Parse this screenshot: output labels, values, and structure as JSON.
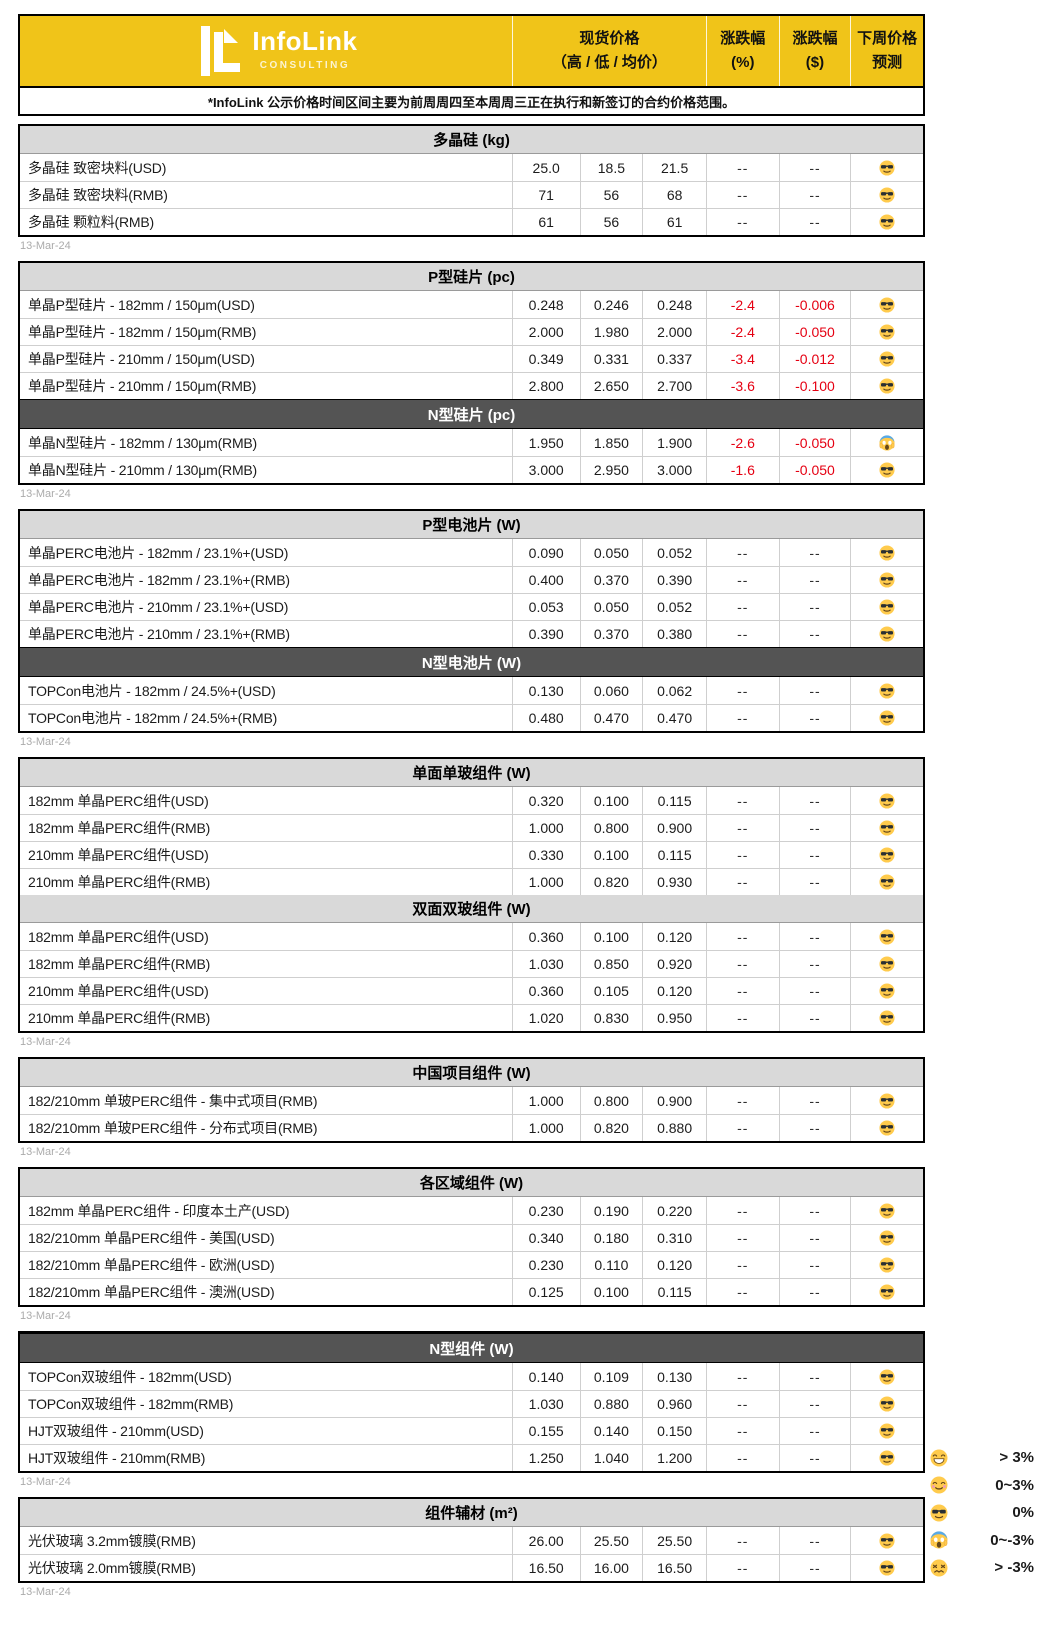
{
  "brand": {
    "name": "InfoLink",
    "subtitle": "CONSULTING"
  },
  "header": {
    "spot_price": [
      "现货价格",
      "（高 / 低 / 均价）"
    ],
    "change_pct": [
      "涨跌幅",
      "(%)"
    ],
    "change_usd": [
      "涨跌幅",
      "($)"
    ],
    "forecast": [
      "下周价格",
      "预测"
    ],
    "note": "*InfoLink 公示价格时间区间主要为前周周四至本周周三正在执行和新签订的合约价格范围。"
  },
  "colors": {
    "brand_yellow": "#F0C419",
    "section_light_bg": "#D9D9D9",
    "section_dark_bg": "#545454",
    "negative_red": "#E50012",
    "date_gray": "#ABABAB"
  },
  "blocks": [
    {
      "date": "13-Mar-24",
      "sections": [
        {
          "title": "多晶硅 (kg)",
          "theme": "light",
          "rows": [
            {
              "name": "多晶硅 致密块料(USD)",
              "high": "25.0",
              "low": "18.5",
              "avg": "21.5",
              "pct": "--",
              "usd": "--",
              "forecast": "cool"
            },
            {
              "name": "多晶硅 致密块料(RMB)",
              "high": "71",
              "low": "56",
              "avg": "68",
              "pct": "--",
              "usd": "--",
              "forecast": "cool"
            },
            {
              "name": "多晶硅 颗粒料(RMB)",
              "high": "61",
              "low": "56",
              "avg": "61",
              "pct": "--",
              "usd": "--",
              "forecast": "cool"
            }
          ]
        }
      ]
    },
    {
      "date": "13-Mar-24",
      "sections": [
        {
          "title": "P型硅片 (pc)",
          "theme": "light",
          "rows": [
            {
              "name": "单晶P型硅片 - 182mm / 150μm(USD)",
              "high": "0.248",
              "low": "0.246",
              "avg": "0.248",
              "pct": "-2.4",
              "usd": "-0.006",
              "forecast": "cool"
            },
            {
              "name": "单晶P型硅片 - 182mm / 150μm(RMB)",
              "high": "2.000",
              "low": "1.980",
              "avg": "2.000",
              "pct": "-2.4",
              "usd": "-0.050",
              "forecast": "cool"
            },
            {
              "name": "单晶P型硅片 - 210mm / 150μm(USD)",
              "high": "0.349",
              "low": "0.331",
              "avg": "0.337",
              "pct": "-3.4",
              "usd": "-0.012",
              "forecast": "cool"
            },
            {
              "name": "单晶P型硅片 - 210mm / 150μm(RMB)",
              "high": "2.800",
              "low": "2.650",
              "avg": "2.700",
              "pct": "-3.6",
              "usd": "-0.100",
              "forecast": "cool"
            }
          ]
        },
        {
          "title": "N型硅片 (pc)",
          "theme": "dark",
          "rows": [
            {
              "name": "单晶N型硅片 - 182mm / 130μm(RMB)",
              "high": "1.950",
              "low": "1.850",
              "avg": "1.900",
              "pct": "-2.6",
              "usd": "-0.050",
              "forecast": "scream"
            },
            {
              "name": "单晶N型硅片 - 210mm / 130μm(RMB)",
              "high": "3.000",
              "low": "2.950",
              "avg": "3.000",
              "pct": "-1.6",
              "usd": "-0.050",
              "forecast": "cool"
            }
          ]
        }
      ]
    },
    {
      "date": "13-Mar-24",
      "sections": [
        {
          "title": "P型电池片 (W)",
          "theme": "light",
          "rows": [
            {
              "name": "单晶PERC电池片 - 182mm / 23.1%+(USD)",
              "high": "0.090",
              "low": "0.050",
              "avg": "0.052",
              "pct": "--",
              "usd": "--",
              "forecast": "cool"
            },
            {
              "name": "单晶PERC电池片 - 182mm / 23.1%+(RMB)",
              "high": "0.400",
              "low": "0.370",
              "avg": "0.390",
              "pct": "--",
              "usd": "--",
              "forecast": "cool"
            },
            {
              "name": "单晶PERC电池片 - 210mm / 23.1%+(USD)",
              "high": "0.053",
              "low": "0.050",
              "avg": "0.052",
              "pct": "--",
              "usd": "--",
              "forecast": "cool"
            },
            {
              "name": "单晶PERC电池片 - 210mm / 23.1%+(RMB)",
              "high": "0.390",
              "low": "0.370",
              "avg": "0.380",
              "pct": "--",
              "usd": "--",
              "forecast": "cool"
            }
          ]
        },
        {
          "title": "N型电池片 (W)",
          "theme": "dark",
          "rows": [
            {
              "name": "TOPCon电池片 - 182mm / 24.5%+(USD)",
              "high": "0.130",
              "low": "0.060",
              "avg": "0.062",
              "pct": "--",
              "usd": "--",
              "forecast": "cool"
            },
            {
              "name": "TOPCon电池片 - 182mm / 24.5%+(RMB)",
              "high": "0.480",
              "low": "0.470",
              "avg": "0.470",
              "pct": "--",
              "usd": "--",
              "forecast": "cool"
            }
          ]
        }
      ]
    },
    {
      "date": "13-Mar-24",
      "sections": [
        {
          "title": "单面单玻组件 (W)",
          "theme": "light",
          "rows": [
            {
              "name": "182mm 单晶PERC组件(USD)",
              "high": "0.320",
              "low": "0.100",
              "avg": "0.115",
              "pct": "--",
              "usd": "--",
              "forecast": "cool"
            },
            {
              "name": "182mm 单晶PERC组件(RMB)",
              "high": "1.000",
              "low": "0.800",
              "avg": "0.900",
              "pct": "--",
              "usd": "--",
              "forecast": "cool"
            },
            {
              "name": "210mm 单晶PERC组件(USD)",
              "high": "0.330",
              "low": "0.100",
              "avg": "0.115",
              "pct": "--",
              "usd": "--",
              "forecast": "cool"
            },
            {
              "name": "210mm 单晶PERC组件(RMB)",
              "high": "1.000",
              "low": "0.820",
              "avg": "0.930",
              "pct": "--",
              "usd": "--",
              "forecast": "cool"
            }
          ]
        },
        {
          "title": "双面双玻组件 (W)",
          "theme": "light",
          "rows": [
            {
              "name": "182mm 单晶PERC组件(USD)",
              "high": "0.360",
              "low": "0.100",
              "avg": "0.120",
              "pct": "--",
              "usd": "--",
              "forecast": "cool"
            },
            {
              "name": "182mm 单晶PERC组件(RMB)",
              "high": "1.030",
              "low": "0.850",
              "avg": "0.920",
              "pct": "--",
              "usd": "--",
              "forecast": "cool"
            },
            {
              "name": "210mm 单晶PERC组件(USD)",
              "high": "0.360",
              "low": "0.105",
              "avg": "0.120",
              "pct": "--",
              "usd": "--",
              "forecast": "cool"
            },
            {
              "name": "210mm 单晶PERC组件(RMB)",
              "high": "1.020",
              "low": "0.830",
              "avg": "0.950",
              "pct": "--",
              "usd": "--",
              "forecast": "cool"
            }
          ]
        }
      ]
    },
    {
      "date": "13-Mar-24",
      "sections": [
        {
          "title": "中国项目组件 (W)",
          "theme": "light",
          "rows": [
            {
              "name": "182/210mm 单玻PERC组件 - 集中式项目(RMB)",
              "high": "1.000",
              "low": "0.800",
              "avg": "0.900",
              "pct": "--",
              "usd": "--",
              "forecast": "cool"
            },
            {
              "name": "182/210mm 单玻PERC组件 - 分布式项目(RMB)",
              "high": "1.000",
              "low": "0.820",
              "avg": "0.880",
              "pct": "--",
              "usd": "--",
              "forecast": "cool"
            }
          ]
        }
      ]
    },
    {
      "date": "13-Mar-24",
      "sections": [
        {
          "title": "各区域组件 (W)",
          "theme": "light",
          "rows": [
            {
              "name": "182mm 单晶PERC组件 - 印度本土产(USD)",
              "high": "0.230",
              "low": "0.190",
              "avg": "0.220",
              "pct": "--",
              "usd": "--",
              "forecast": "cool"
            },
            {
              "name": "182/210mm 单晶PERC组件 - 美国(USD)",
              "high": "0.340",
              "low": "0.180",
              "avg": "0.310",
              "pct": "--",
              "usd": "--",
              "forecast": "cool"
            },
            {
              "name": "182/210mm 单晶PERC组件 - 欧洲(USD)",
              "high": "0.230",
              "low": "0.110",
              "avg": "0.120",
              "pct": "--",
              "usd": "--",
              "forecast": "cool"
            },
            {
              "name": "182/210mm 单晶PERC组件 - 澳洲(USD)",
              "high": "0.125",
              "low": "0.100",
              "avg": "0.115",
              "pct": "--",
              "usd": "--",
              "forecast": "cool"
            }
          ]
        }
      ]
    },
    {
      "date": "13-Mar-24",
      "sections": [
        {
          "title": "N型组件 (W)",
          "theme": "dark",
          "rows": [
            {
              "name": "TOPCon双玻组件 - 182mm(USD)",
              "high": "0.140",
              "low": "0.109",
              "avg": "0.130",
              "pct": "--",
              "usd": "--",
              "forecast": "cool"
            },
            {
              "name": "TOPCon双玻组件 - 182mm(RMB)",
              "high": "1.030",
              "low": "0.880",
              "avg": "0.960",
              "pct": "--",
              "usd": "--",
              "forecast": "cool"
            },
            {
              "name": "HJT双玻组件 - 210mm(USD)",
              "high": "0.155",
              "low": "0.140",
              "avg": "0.150",
              "pct": "--",
              "usd": "--",
              "forecast": "cool"
            },
            {
              "name": "HJT双玻组件 - 210mm(RMB)",
              "high": "1.250",
              "low": "1.040",
              "avg": "1.200",
              "pct": "--",
              "usd": "--",
              "forecast": "cool"
            }
          ]
        }
      ]
    },
    {
      "date": "13-Mar-24",
      "sections": [
        {
          "title": "组件辅材 (m²)",
          "theme": "light",
          "rows": [
            {
              "name": "光伏玻璃 3.2mm镀膜(RMB)",
              "high": "26.00",
              "low": "25.50",
              "avg": "25.50",
              "pct": "--",
              "usd": "--",
              "forecast": "cool"
            },
            {
              "name": "光伏玻璃 2.0mm镀膜(RMB)",
              "high": "16.50",
              "low": "16.00",
              "avg": "16.50",
              "pct": "--",
              "usd": "--",
              "forecast": "cool"
            }
          ]
        }
      ]
    }
  ],
  "legend": {
    "items": [
      {
        "icon": "grin",
        "label": "> 3%"
      },
      {
        "icon": "smile",
        "label": "0~3%"
      },
      {
        "icon": "cool",
        "label": "0%"
      },
      {
        "icon": "scream",
        "label": "0~-3%"
      },
      {
        "icon": "confounded",
        "label": "> -3%"
      }
    ]
  }
}
